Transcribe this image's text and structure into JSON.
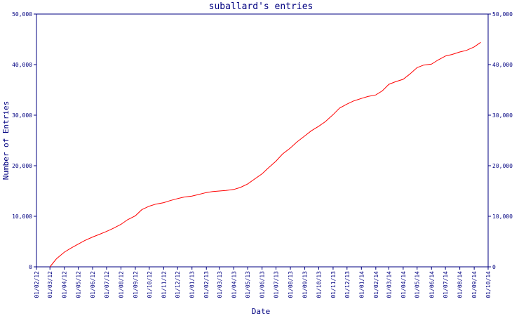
{
  "chart_data": {
    "type": "line",
    "title": "suballard's entries",
    "xlabel": "Date",
    "ylabel": "Number of Entries",
    "ylim": [
      0,
      50000
    ],
    "y_ticks": [
      {
        "value": 0,
        "label": "0"
      },
      {
        "value": 10000,
        "label": "10,000"
      },
      {
        "value": 20000,
        "label": "20,000"
      },
      {
        "value": 30000,
        "label": "30,000"
      },
      {
        "value": 40000,
        "label": "40,000"
      },
      {
        "value": 50000,
        "label": "50,000"
      }
    ],
    "x_tick_labels": [
      "01/02/12",
      "01/03/12",
      "01/04/12",
      "01/05/12",
      "01/06/12",
      "01/07/12",
      "01/08/12",
      "01/09/12",
      "01/10/12",
      "01/11/12",
      "01/12/12",
      "01/01/13",
      "01/02/13",
      "01/03/13",
      "01/04/13",
      "01/05/13",
      "01/06/13",
      "01/07/13",
      "01/08/13",
      "01/09/13",
      "01/10/13",
      "01/11/13",
      "01/12/13",
      "01/01/14",
      "01/02/14",
      "01/03/14",
      "01/04/14",
      "01/05/14",
      "01/06/14",
      "01/07/14",
      "01/08/14",
      "01/09/14",
      "01/10/14"
    ],
    "x_range": [
      "01/02/12",
      "01/10/14"
    ],
    "grid": false,
    "colors": {
      "line": "#ff0000",
      "axis": "#000080",
      "text": "#000080"
    },
    "series": [
      {
        "x": [
          "01/03/12",
          "15/03/12",
          "01/04/12",
          "15/04/12",
          "01/05/12",
          "15/05/12",
          "01/06/12",
          "15/06/12",
          "01/07/12",
          "15/07/12",
          "01/08/12",
          "15/08/12",
          "01/09/12",
          "15/09/12",
          "01/10/12",
          "15/10/12",
          "01/11/12",
          "15/11/12",
          "01/12/12",
          "15/12/12",
          "01/01/13",
          "15/01/13",
          "01/02/13",
          "15/02/13",
          "01/03/13",
          "15/03/13",
          "01/04/13",
          "15/04/13",
          "01/05/13",
          "15/05/13",
          "01/06/13",
          "15/06/13",
          "01/07/13",
          "15/07/13",
          "01/08/13",
          "15/08/13",
          "01/09/13",
          "15/09/13",
          "01/10/13",
          "15/10/13",
          "01/11/13",
          "15/11/13",
          "01/12/13",
          "15/12/13",
          "01/01/14",
          "15/01/14",
          "01/02/14",
          "15/02/14",
          "01/03/14",
          "15/03/14",
          "01/04/14",
          "15/04/14",
          "01/05/14",
          "15/05/14",
          "01/06/14",
          "15/06/14",
          "01/07/14",
          "15/07/14",
          "01/08/14",
          "15/08/14",
          "01/09/14",
          "15/09/14"
        ],
        "values": [
          0,
          1600,
          2900,
          3700,
          4500,
          5200,
          5900,
          6400,
          7000,
          7600,
          8400,
          9300,
          10100,
          11300,
          12000,
          12400,
          12700,
          13100,
          13500,
          13800,
          14000,
          14300,
          14700,
          14900,
          15000,
          15100,
          15300,
          15700,
          16400,
          17300,
          18400,
          19600,
          20900,
          22300,
          23500,
          24700,
          25900,
          26900,
          27800,
          28700,
          30100,
          31400,
          32200,
          32800,
          33300,
          33700,
          34000,
          34800,
          36100,
          36600,
          37100,
          38100,
          39400,
          39900,
          40100,
          40900,
          41700,
          42000,
          42500,
          42800,
          43500,
          44400
        ]
      }
    ]
  }
}
